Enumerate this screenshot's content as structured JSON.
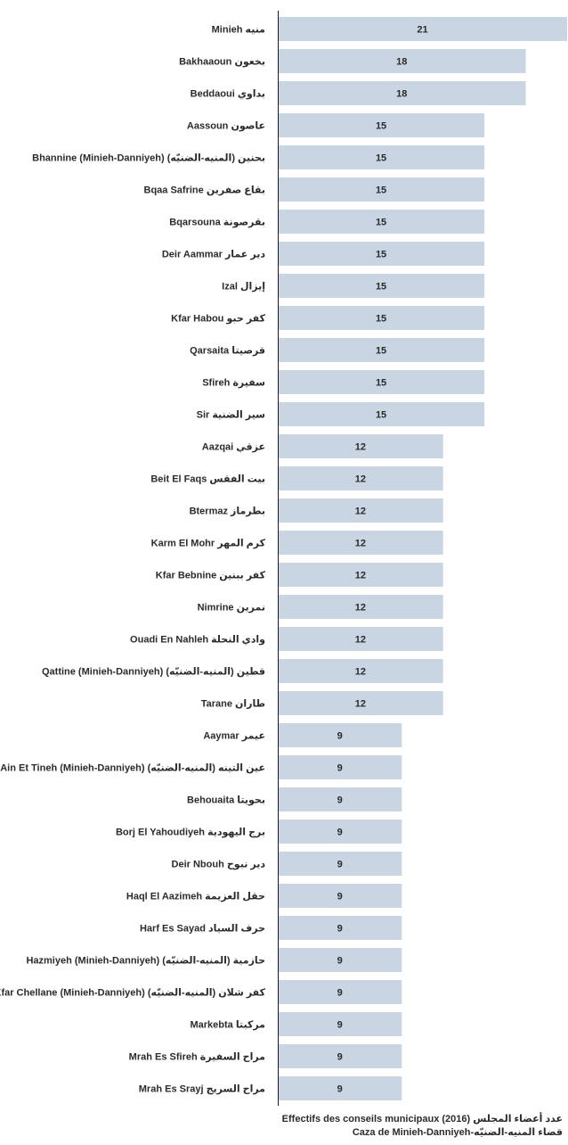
{
  "chart_data": {
    "type": "bar",
    "orientation": "horizontal",
    "title": "Effectifs des conseils municipaux (2016) عدد أعضاء المجلس",
    "subtitle": "Caza de Minieh-Danniyeh-قضاء المنيه-الضنيّه",
    "xlim": [
      0,
      21
    ],
    "grid": false,
    "bar_color": "#c9d5e2",
    "categories": [
      "Minieh منيه",
      "Bakhaaoun بخعون",
      "Beddaoui بداوي",
      "Aassoun عاصون",
      "Bhannine (Minieh-Danniyeh) بحنين (المنيه-الضنيّه)",
      "Bqaa Safrine بقاع صفرين",
      "Bqarsouna بقرصونة",
      "Deir Aammar دير عمار",
      "Izal إيزال",
      "Kfar Habou كفر حبو",
      "Qarsaita قرصيتا",
      "Sfireh سفيرة",
      "Sir سير الضنية",
      "Aazqai عزقي",
      "Beit El Faqs بيت الفقس",
      "Btermaz بطرماز",
      "Karm El Mohr كرم المهر",
      "Kfar Bebnine كفر ببنين",
      "Nimrine نمرين",
      "Ouadi En Nahleh وادي النحلة",
      "Qattine (Minieh-Danniyeh) قطين (المنيه-الضنيّه)",
      "Tarane طاران",
      "Aaymar عيمر",
      "Ain Et Tineh (Minieh-Danniyeh) عين التينه (المنيه-الضنيّه)",
      "Behouaita بحويتا",
      "Borj El Yahoudiyeh برج اليهودية",
      "Deir Nbouh دير نبوح",
      "Haql El Aazimeh حقل العزيمة",
      "Harf Es Sayad حرف السياد",
      "Hazmiyeh (Minieh-Danniyeh) حازمية (المنيه-الضنيّه)",
      "Kfar Chellane (Minieh-Danniyeh) كفر شلان (المنيه-الضنيّه)",
      "Markebta مركبتا",
      "Mrah Es Sfireh مراح السفيرة",
      "Mrah Es Srayj مراح السريج"
    ],
    "values": [
      21,
      18,
      18,
      15,
      15,
      15,
      15,
      15,
      15,
      15,
      15,
      15,
      15,
      12,
      12,
      12,
      12,
      12,
      12,
      12,
      12,
      12,
      9,
      9,
      9,
      9,
      9,
      9,
      9,
      9,
      9,
      9,
      9,
      9
    ]
  }
}
